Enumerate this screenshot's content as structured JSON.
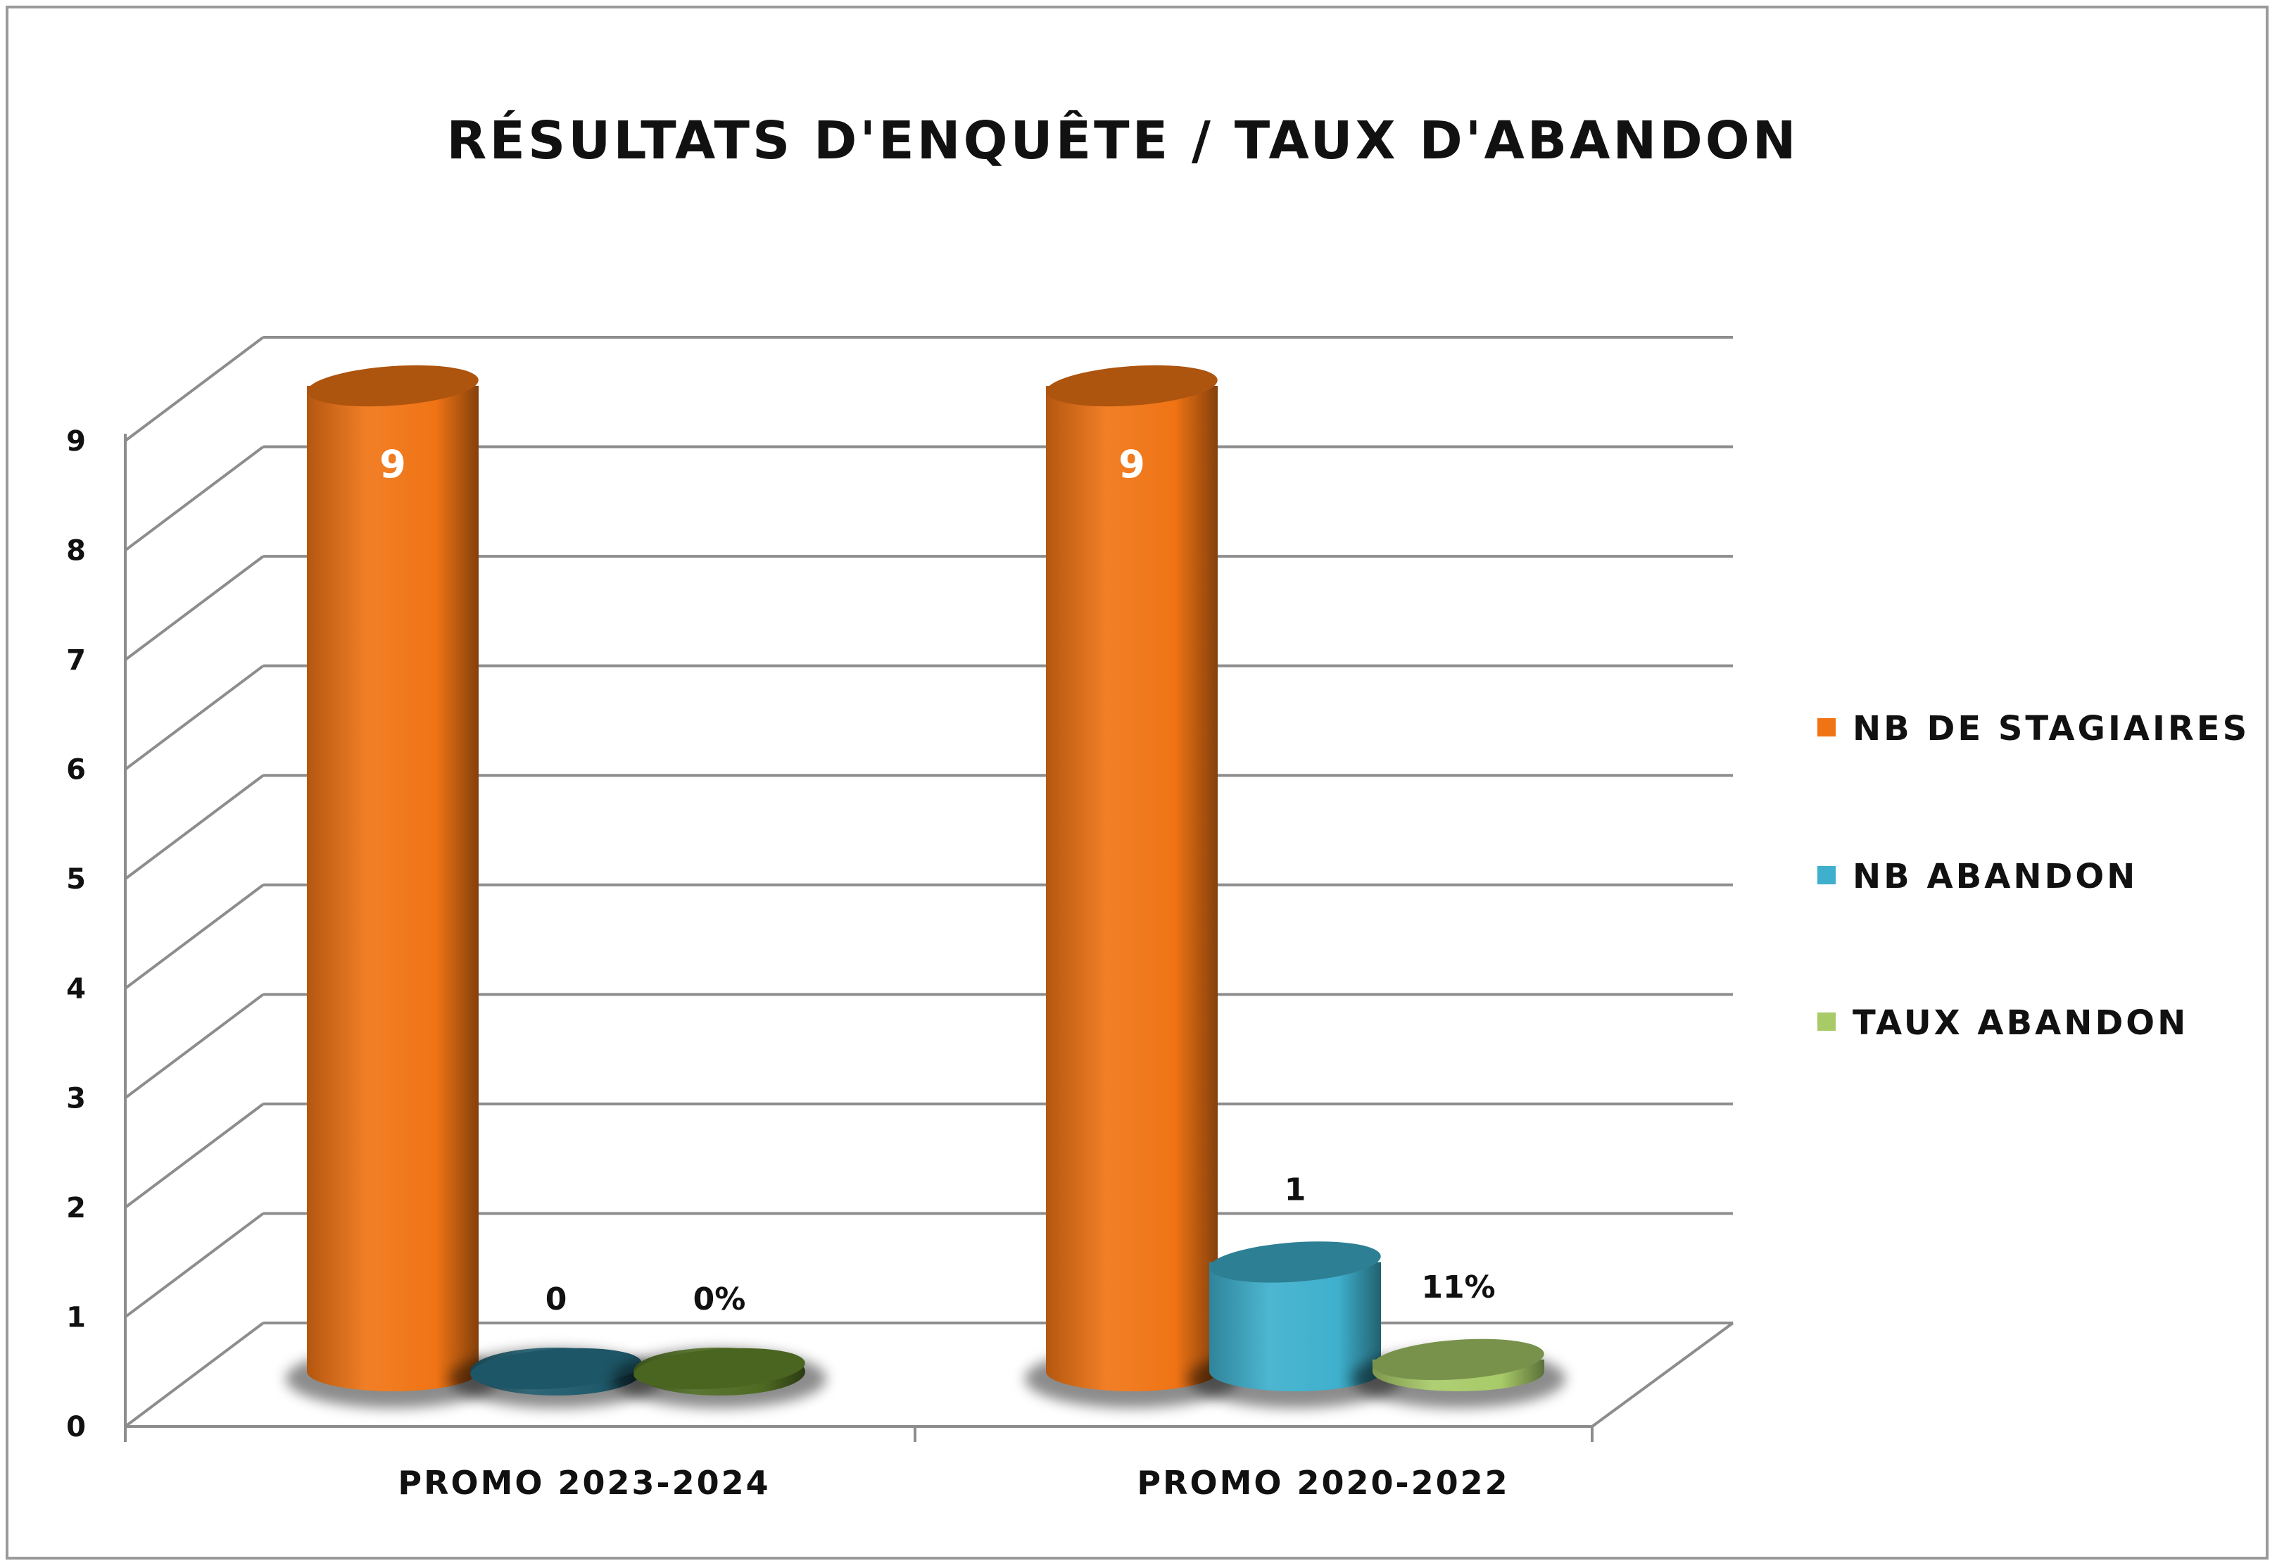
{
  "chart_data": {
    "type": "bar",
    "style": "3d-cylinder",
    "title": "RÉSULTATS D'ENQUÊTE / TAUX D'ABANDON",
    "categories": [
      "PROMO 2023-2024",
      "PROMO 2020-2022"
    ],
    "ylim": [
      0,
      9
    ],
    "yticks": [
      "0",
      "1",
      "2",
      "3",
      "4",
      "5",
      "6",
      "7",
      "8",
      "9"
    ],
    "grid": true,
    "legend": "right",
    "series": [
      {
        "name": "NB DE STAGIAIRES",
        "values": [
          9,
          9
        ],
        "labels": [
          "9",
          "9"
        ],
        "colors": [
          "#f07414",
          "#f07414"
        ]
      },
      {
        "name": "NB ABANDON",
        "values": [
          0,
          1
        ],
        "labels": [
          "0",
          "1"
        ],
        "colors": [
          "#1f5a6b",
          "#3eb0cd"
        ]
      },
      {
        "name": "TAUX ABANDON",
        "values": [
          0,
          0.11
        ],
        "labels": [
          "0%",
          "11%"
        ],
        "colors": [
          "#4e6a22",
          "#a8cb68"
        ]
      }
    ]
  }
}
